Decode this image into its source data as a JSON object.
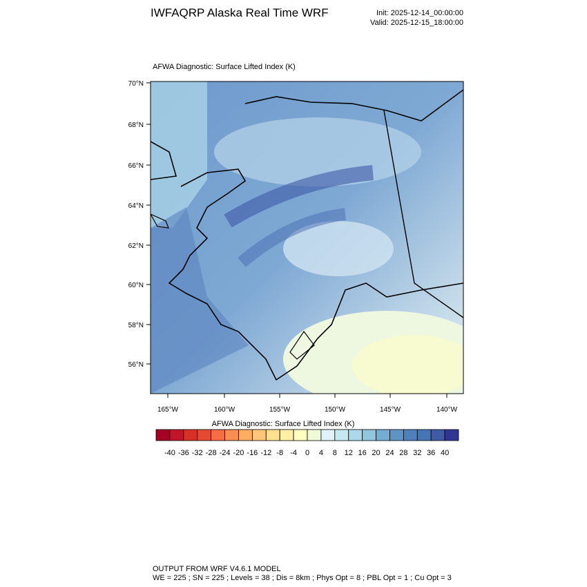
{
  "header": {
    "title": "IWFAQRP Alaska Real Time WRF",
    "init": "Init: 2025-12-14_00:00:00",
    "valid": "Valid: 2025-12-15_18:00:00"
  },
  "map": {
    "subtitle": "AFWA Diagnostic: Surface Lifted Index   (K)",
    "lat_labels": [
      "70°N",
      "68°N",
      "66°N",
      "64°N",
      "62°N",
      "60°N",
      "58°N",
      "56°N"
    ],
    "lon_labels": [
      "165°W",
      "160°W",
      "155°W",
      "150°W",
      "145°W",
      "140°W"
    ]
  },
  "colorbar": {
    "title": "AFWA Diagnostic: Surface Lifted Index  (K)",
    "colors": [
      "#a50026",
      "#c0152a",
      "#d73027",
      "#e34a33",
      "#f46d43",
      "#f98e52",
      "#fdae61",
      "#fec57b",
      "#fee090",
      "#fff0a8",
      "#ffffbf",
      "#f0f9d8",
      "#e0f3f8",
      "#c8e8f1",
      "#abd9e9",
      "#92c5de",
      "#74add1",
      "#5f93c4",
      "#4f80bb",
      "#4575b4",
      "#3f5ba5",
      "#313695"
    ],
    "labels": [
      -40,
      -36,
      -32,
      -28,
      -24,
      -20,
      -16,
      -12,
      -8,
      -4,
      0,
      4,
      8,
      12,
      16,
      20,
      24,
      28,
      32,
      36,
      40
    ]
  },
  "footer": {
    "line1": "OUTPUT FROM WRF V4.6.1 MODEL",
    "line2": "WE = 225 ; SN = 225 ; Levels = 38 ; Dis = 8km ; Phys Opt = 8 ; PBL Opt = 1 ; Cu Opt = 3"
  }
}
